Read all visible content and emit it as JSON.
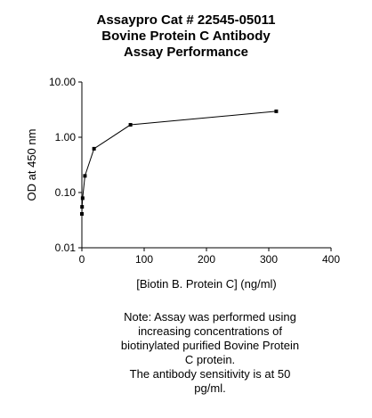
{
  "chart_data": {
    "type": "line",
    "title": [
      "Assaypro Cat # 22545-05011",
      "Bovine Protein C Antibody",
      "Assay Performance"
    ],
    "x_label": "[Biotin B. Protein C] (ng/ml)",
    "y_label": "OD at 450 nm",
    "x": [
      0,
      0.3,
      1.2,
      4.9,
      19.5,
      78,
      312
    ],
    "values": [
      0.041,
      0.055,
      0.079,
      0.2,
      0.62,
      1.68,
      2.95
    ],
    "color": "#000000",
    "xlim": [
      0,
      400
    ],
    "xticks": [
      0,
      100,
      200,
      300,
      400
    ],
    "ylim": [
      0.01,
      10
    ],
    "yscale": "log",
    "yticks": [
      0.01,
      {
        "value": 0.1,
        "label": "0.10"
      },
      {
        "value": 1,
        "label": "1.00"
      },
      {
        "value": 10,
        "label": "10.00"
      }
    ],
    "note": [
      "Note: Assay was performed using",
      "increasing concentrations of",
      "biotinylated purified Bovine Protein",
      "C protein.",
      "The antibody sensitivity is at 50",
      "pg/ml."
    ]
  }
}
